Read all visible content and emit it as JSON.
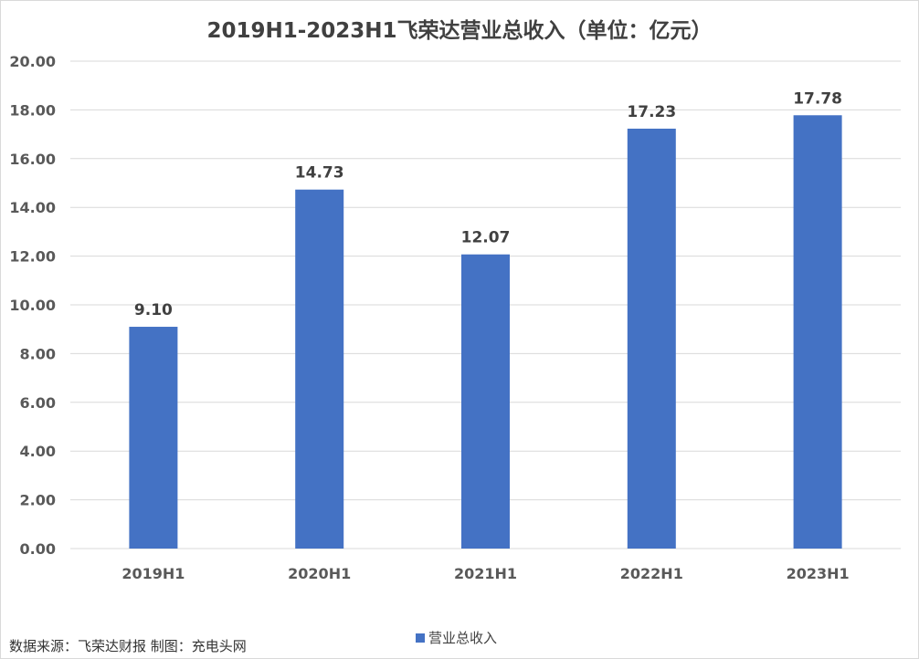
{
  "chart_data": {
    "type": "bar",
    "title": "2019H1-2023H1飞荣达营业总收入（单位：亿元）",
    "categories": [
      "2019H1",
      "2020H1",
      "2021H1",
      "2022H1",
      "2023H1"
    ],
    "series": [
      {
        "name": "营业总收入",
        "values": [
          9.1,
          14.73,
          12.07,
          17.23,
          17.78
        ]
      }
    ],
    "data_labels": [
      "9.10",
      "14.73",
      "12.07",
      "17.23",
      "17.78"
    ],
    "y_ticks": [
      "0.00",
      "2.00",
      "4.00",
      "6.00",
      "8.00",
      "10.00",
      "12.00",
      "14.00",
      "16.00",
      "18.00",
      "20.00"
    ],
    "ylim": [
      0,
      20
    ],
    "xlabel": "",
    "ylabel": "",
    "grid": true,
    "legend_position": "bottom",
    "bar_color": "#4472c4",
    "grid_color": "#d9d9d9"
  },
  "footer": {
    "source": "数据来源：飞荣达财报  制图：充电头网"
  }
}
